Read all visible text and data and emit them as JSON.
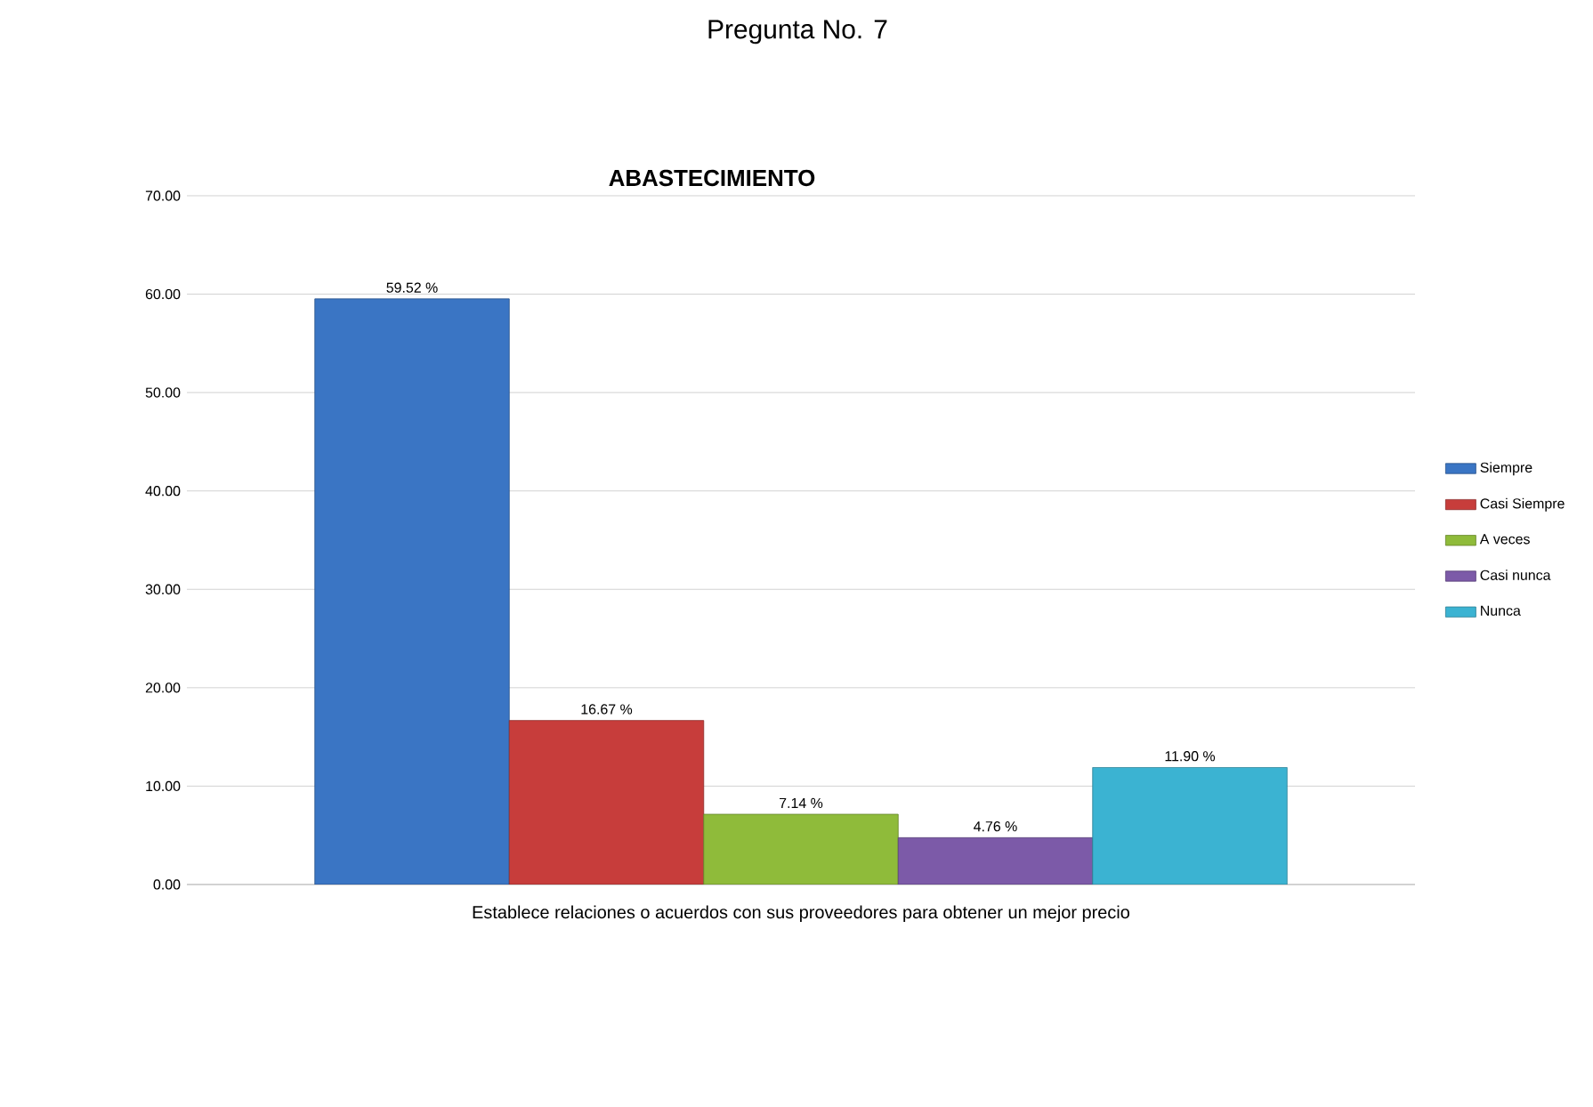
{
  "chart_data": {
    "type": "bar",
    "title": "Pregunta No. 7",
    "subtitle": "ABASTECIMIENTO",
    "categories": [
      "Establece relaciones o acuerdos con sus proveedores para obtener un mejor precio"
    ],
    "series": [
      {
        "name": "Siempre",
        "color": "#3a75c4",
        "values": [
          59.52
        ],
        "value_labels": [
          "59.52 %"
        ]
      },
      {
        "name": "Casi Siempre",
        "color": "#c73d3b",
        "values": [
          16.67
        ],
        "value_labels": [
          "16.67 %"
        ]
      },
      {
        "name": "A veces",
        "color": "#8fbb3a",
        "values": [
          7.14
        ],
        "value_labels": [
          "7.14 %"
        ]
      },
      {
        "name": "Casi nunca",
        "color": "#7c5aa8",
        "values": [
          4.76
        ],
        "value_labels": [
          "4.76 %"
        ]
      },
      {
        "name": "Nunca",
        "color": "#3bb3d2",
        "values": [
          11.9
        ],
        "value_labels": [
          "11.90 %"
        ]
      }
    ],
    "ylim": [
      0,
      70
    ],
    "yticks": [
      {
        "value": 0,
        "label": "0.00"
      },
      {
        "value": 10,
        "label": "10.00"
      },
      {
        "value": 20,
        "label": "20.00"
      },
      {
        "value": 30,
        "label": "30.00"
      },
      {
        "value": 40,
        "label": "40.00"
      },
      {
        "value": 50,
        "label": "50.00"
      },
      {
        "value": 60,
        "label": "60.00"
      },
      {
        "value": 70,
        "label": "70.00"
      }
    ],
    "grid": "y",
    "legend": "right"
  }
}
